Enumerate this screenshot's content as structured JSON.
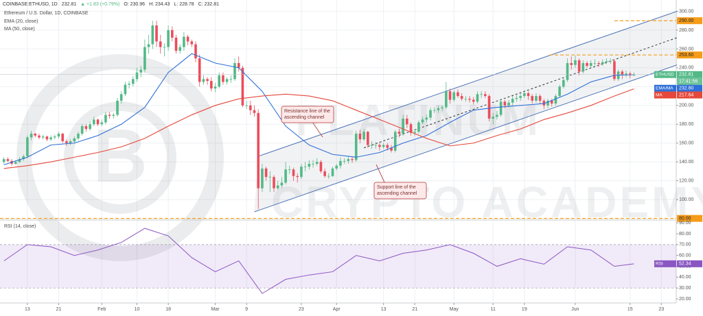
{
  "chart_data": {
    "type": "candlestick",
    "header": [
      "COINBASE:ETHUSD, 1D",
      "232.81",
      "▲ +1.83 (+0.79%)",
      "O: 230.96",
      "H: 234.43",
      "L: 228.78",
      "C: 232.81"
    ],
    "title": "Ethereum / U.S. Dollar, 1D, COINBASE",
    "watermark": [
      "PLATINUM",
      "CRYPTO ACADEMY"
    ],
    "up_color": "#53b987",
    "down_color": "#eb4d5c",
    "xlim": [
      -1,
      171.8
    ],
    "xticks": [
      {
        "value": 6,
        "label": "13"
      },
      {
        "value": 14,
        "label": "21"
      },
      {
        "value": 25,
        "label": "Feb"
      },
      {
        "value": 34,
        "label": "10"
      },
      {
        "value": 42,
        "label": "18"
      },
      {
        "value": 54,
        "label": "Mar"
      },
      {
        "value": 62,
        "label": "9"
      },
      {
        "value": 76,
        "label": "23"
      },
      {
        "value": 85,
        "label": "Apr"
      },
      {
        "value": 97,
        "label": "13"
      },
      {
        "value": 105,
        "label": "21"
      },
      {
        "value": 115,
        "label": "May"
      },
      {
        "value": 125,
        "label": "11"
      },
      {
        "value": 133,
        "label": "19"
      },
      {
        "value": 146,
        "label": "Jun"
      },
      {
        "value": 160,
        "label": "15"
      },
      {
        "value": 168,
        "label": "23"
      }
    ],
    "ylim": [
      79,
      312
    ],
    "yticks": [
      {
        "value": 100,
        "label": "100.00"
      },
      {
        "value": 120,
        "label": "120.00"
      },
      {
        "value": 140,
        "label": "140.00"
      },
      {
        "value": 160,
        "label": "160.00"
      },
      {
        "value": 180,
        "label": "180.00"
      },
      {
        "value": 200,
        "label": "200.00"
      },
      {
        "value": 220,
        "label": "220.00"
      },
      {
        "value": 240,
        "label": "240.00"
      },
      {
        "value": 260,
        "label": "260.00"
      },
      {
        "value": 280,
        "label": "280.00"
      },
      {
        "value": 300,
        "label": "300.00"
      }
    ],
    "open": [
      140,
      143,
      141,
      138,
      140,
      143,
      146,
      166,
      170,
      168,
      166,
      167,
      164,
      166,
      167,
      170,
      162,
      160,
      162,
      165,
      170,
      178,
      175,
      180,
      185,
      180,
      182,
      190,
      189,
      190,
      205,
      212,
      222,
      223,
      228,
      235,
      238,
      262,
      265,
      285,
      268,
      262,
      262,
      280,
      272,
      258,
      262,
      273,
      268,
      265,
      250,
      225,
      228,
      226,
      218,
      220,
      232,
      225,
      228,
      228,
      245,
      240,
      200,
      200,
      195,
      192,
      112,
      133,
      124,
      124,
      112,
      115,
      118,
      132,
      132,
      125,
      124,
      135,
      135,
      138,
      138,
      140,
      130,
      125,
      125,
      133,
      136,
      141,
      141,
      143,
      142,
      170,
      164,
      172,
      158,
      158,
      158,
      156,
      158,
      155,
      152,
      172,
      170,
      186,
      180,
      171,
      172,
      182,
      185,
      187,
      195,
      195,
      197,
      198,
      215,
      206,
      214,
      210,
      207,
      207,
      206,
      204,
      212,
      212,
      210,
      186,
      188,
      190,
      204,
      200,
      203,
      207,
      208,
      210,
      213,
      210,
      205,
      210,
      205,
      200,
      205,
      202,
      210,
      220,
      227,
      245,
      243,
      248,
      236,
      245,
      242,
      245,
      245,
      244,
      246,
      247,
      247,
      228,
      236,
      232,
      234,
      232
    ],
    "high": [
      145,
      145,
      143,
      142,
      145,
      148,
      168,
      173,
      171,
      170,
      169,
      168,
      168,
      169,
      172,
      171,
      164,
      164,
      167,
      172,
      180,
      180,
      183,
      188,
      186,
      185,
      193,
      193,
      192,
      208,
      215,
      225,
      226,
      231,
      240,
      242,
      270,
      275,
      290,
      290,
      275,
      266,
      285,
      284,
      275,
      265,
      278,
      275,
      270,
      268,
      254,
      232,
      230,
      230,
      224,
      235,
      235,
      230,
      232,
      250,
      252,
      242,
      205,
      205,
      200,
      196,
      138,
      135,
      130,
      126,
      120,
      124,
      140,
      136,
      134,
      128,
      138,
      140,
      142,
      142,
      144,
      142,
      133,
      128,
      135,
      138,
      145,
      144,
      146,
      146,
      173,
      174,
      175,
      173,
      162,
      161,
      160,
      160,
      160,
      158,
      174,
      175,
      190,
      190,
      182,
      175,
      184,
      188,
      190,
      198,
      198,
      200,
      200,
      225,
      218,
      216,
      217,
      213,
      210,
      210,
      209,
      215,
      215,
      215,
      212,
      192,
      194,
      207,
      206,
      206,
      210,
      211,
      213,
      216,
      215,
      212,
      213,
      212,
      207,
      207,
      207,
      212,
      222,
      230,
      250,
      252,
      253,
      250,
      248,
      247,
      248,
      249,
      247,
      249,
      250,
      250,
      249,
      238,
      238,
      237,
      236,
      235
    ],
    "low": [
      138,
      140,
      136,
      137,
      139,
      141,
      144,
      163,
      166,
      164,
      164,
      162,
      162,
      164,
      165,
      160,
      157,
      158,
      160,
      163,
      168,
      172,
      173,
      178,
      178,
      178,
      180,
      186,
      186,
      188,
      202,
      210,
      218,
      220,
      225,
      230,
      235,
      255,
      260,
      262,
      255,
      252,
      258,
      268,
      255,
      255,
      258,
      264,
      262,
      246,
      220,
      222,
      222,
      215,
      214,
      218,
      222,
      222,
      224,
      226,
      236,
      198,
      196,
      190,
      188,
      90,
      108,
      120,
      108,
      108,
      110,
      112,
      116,
      127,
      120,
      118,
      122,
      130,
      132,
      134,
      136,
      128,
      123,
      122,
      124,
      131,
      133,
      138,
      138,
      139,
      140,
      160,
      162,
      155,
      154,
      154,
      152,
      154,
      152,
      150,
      150,
      166,
      168,
      176,
      168,
      168,
      170,
      180,
      182,
      184,
      192,
      192,
      194,
      196,
      202,
      204,
      208,
      205,
      204,
      203,
      201,
      202,
      208,
      208,
      183,
      180,
      185,
      188,
      197,
      198,
      200,
      204,
      205,
      208,
      206,
      202,
      203,
      202,
      196,
      197,
      199,
      200,
      208,
      218,
      225,
      238,
      240,
      232,
      234,
      240,
      240,
      242,
      241,
      242,
      244,
      244,
      226,
      226,
      228,
      230,
      229,
      231
    ],
    "close": [
      143,
      141,
      138,
      140,
      143,
      146,
      166,
      170,
      168,
      166,
      167,
      164,
      166,
      167,
      170,
      162,
      160,
      162,
      165,
      170,
      178,
      175,
      180,
      185,
      180,
      182,
      190,
      189,
      190,
      205,
      212,
      222,
      223,
      228,
      235,
      238,
      262,
      265,
      285,
      268,
      262,
      262,
      280,
      272,
      258,
      262,
      273,
      268,
      265,
      250,
      225,
      228,
      226,
      218,
      220,
      232,
      225,
      228,
      228,
      245,
      240,
      200,
      200,
      195,
      192,
      112,
      133,
      124,
      124,
      112,
      115,
      118,
      132,
      132,
      125,
      124,
      135,
      135,
      138,
      138,
      140,
      130,
      125,
      125,
      133,
      136,
      141,
      141,
      143,
      142,
      170,
      164,
      172,
      158,
      158,
      158,
      156,
      158,
      155,
      152,
      172,
      170,
      186,
      180,
      171,
      172,
      182,
      185,
      187,
      195,
      195,
      197,
      198,
      215,
      206,
      214,
      210,
      207,
      207,
      206,
      204,
      212,
      212,
      210,
      186,
      188,
      190,
      204,
      200,
      203,
      207,
      208,
      210,
      213,
      210,
      205,
      210,
      205,
      200,
      205,
      202,
      210,
      220,
      227,
      245,
      243,
      248,
      236,
      245,
      242,
      245,
      245,
      244,
      246,
      247,
      247,
      228,
      236,
      232,
      234,
      232,
      232.81
    ],
    "overlays": [
      {
        "name": "EMA (20, close)",
        "color": "#2e6fd8",
        "x": [
          0,
          6,
          12,
          18,
          24,
          30,
          36,
          42,
          48,
          54,
          60,
          66,
          72,
          78,
          84,
          90,
          96,
          102,
          108,
          114,
          120,
          126,
          132,
          138,
          144,
          150,
          156,
          161
        ],
        "values": [
          137,
          145,
          158,
          160,
          168,
          180,
          198,
          235,
          255,
          245,
          240,
          215,
          178,
          158,
          148,
          145,
          150,
          160,
          168,
          182,
          195,
          198,
          200,
          202,
          212,
          225,
          232,
          232.8
        ]
      },
      {
        "name": "MA (50, close)",
        "color": "#e5473a",
        "x": [
          0,
          6,
          12,
          18,
          24,
          30,
          36,
          42,
          48,
          54,
          60,
          66,
          72,
          78,
          84,
          90,
          96,
          102,
          108,
          114,
          120,
          126,
          132,
          138,
          144,
          150,
          156,
          161
        ],
        "values": [
          133,
          136,
          140,
          145,
          150,
          156,
          165,
          178,
          190,
          200,
          207,
          210,
          212,
          210,
          205,
          195,
          185,
          175,
          165,
          157,
          160,
          168,
          175,
          185,
          192,
          200,
          210,
          217.64
        ]
      }
    ],
    "levels_color": "#f59c1a",
    "levels": [
      {
        "value": 290,
        "label": "290.00"
      },
      {
        "value": 253.6,
        "label": "253.60"
      },
      {
        "value": 80,
        "label": "80.00"
      }
    ],
    "channel": [
      {
        "x": [
          65,
          172
        ],
        "y": [
          146,
          300
        ]
      },
      {
        "x": [
          64,
          172
        ],
        "y": [
          87,
          243
        ]
      },
      {
        "x": [
          92,
          172
        ],
        "y": [
          155,
          272
        ]
      }
    ],
    "annotations": [
      [
        "Resistance line of the",
        "ascending channel"
      ],
      [
        "Support line of the",
        "ascending channel"
      ]
    ],
    "price_labels": {
      "symbol": "ETHUSD",
      "last": 232.81,
      "timer": "17:41:56",
      "ema_name": "EMA/MA",
      "ema": {
        "value": 232.8,
        "label": "232.80"
      },
      "ma_name": "MA",
      "ma": 217.64
    },
    "rsi": {
      "title": "RSI (14, close)",
      "name": "RSI",
      "color": "#8a56c2",
      "band": [
        30,
        70
      ],
      "ylim": [
        17.5,
        92
      ],
      "yticks": [
        {
          "value": 20,
          "label": "20.00"
        },
        {
          "value": 30,
          "label": "30.00"
        },
        {
          "value": 40,
          "label": "40.00"
        },
        {
          "value": 50,
          "label": "50.00"
        },
        {
          "value": 60,
          "label": "60.00"
        },
        {
          "value": 70,
          "label": "70.00"
        },
        {
          "value": 80,
          "label": "80.00"
        },
        {
          "value": 90,
          "label": "90.00"
        }
      ],
      "x": [
        0,
        6,
        12,
        18,
        24,
        30,
        36,
        42,
        48,
        54,
        60,
        66,
        72,
        78,
        84,
        90,
        96,
        102,
        108,
        114,
        120,
        126,
        132,
        138,
        144,
        150,
        156,
        161
      ],
      "values": [
        55,
        70,
        68,
        60,
        65,
        72,
        85,
        78,
        58,
        45,
        55,
        25,
        38,
        42,
        45,
        60,
        55,
        62,
        65,
        70,
        62,
        50,
        57,
        52,
        68,
        65,
        50,
        52.34
      ],
      "last": 52.34
    }
  }
}
